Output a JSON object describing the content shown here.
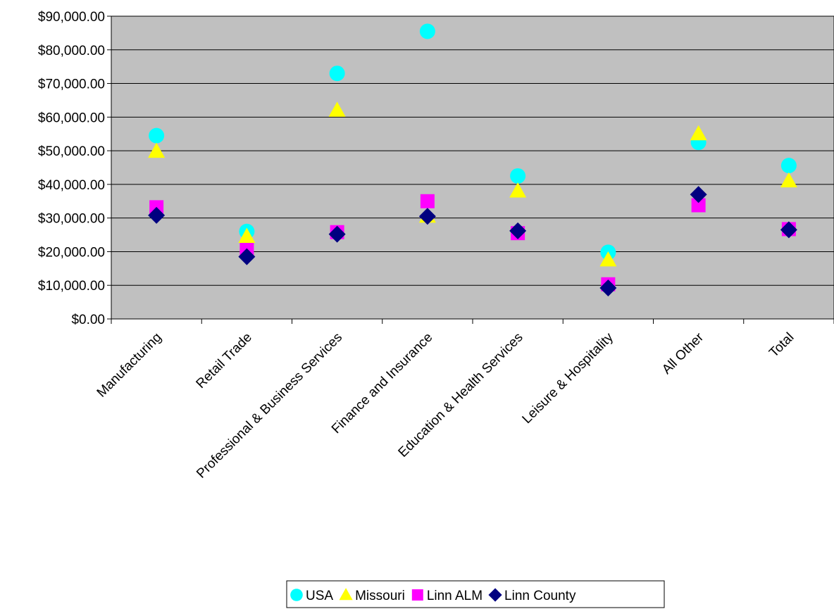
{
  "chart_data": {
    "type": "scatter",
    "categories": [
      "Manufacturing",
      "Retail Trade",
      "Professional & Business Services",
      "Finance and Insurance",
      "Education & Health Services",
      "Leisure & Hospitality",
      "All Other",
      "Total"
    ],
    "y_ticks": [
      "$0.00",
      "$10,000.00",
      "$20,000.00",
      "$30,000.00",
      "$40,000.00",
      "$50,000.00",
      "$60,000.00",
      "$70,000.00",
      "$80,000.00",
      "$90,000.00"
    ],
    "ylim": [
      0,
      90000
    ],
    "grid": true,
    "legend_position": "bottom",
    "plot_background": "#c0c0c0",
    "series": [
      {
        "name": "USA",
        "marker": "circle",
        "color": "#00ffff",
        "values": [
          54500,
          26000,
          73000,
          85500,
          42500,
          19800,
          52500,
          45600
        ]
      },
      {
        "name": "Missouri",
        "marker": "triangle",
        "color": "#ffff00",
        "values": [
          49800,
          24500,
          62000,
          30500,
          38000,
          17500,
          55000,
          41000
        ]
      },
      {
        "name": "Linn ALM",
        "marker": "square",
        "color": "#ff00ff",
        "values": [
          33200,
          20500,
          25800,
          35000,
          25500,
          10300,
          33800,
          26700
        ]
      },
      {
        "name": "Linn County",
        "marker": "diamond",
        "color": "#000080",
        "values": [
          30800,
          18500,
          25200,
          30500,
          26200,
          9200,
          37000,
          26500
        ]
      }
    ]
  }
}
